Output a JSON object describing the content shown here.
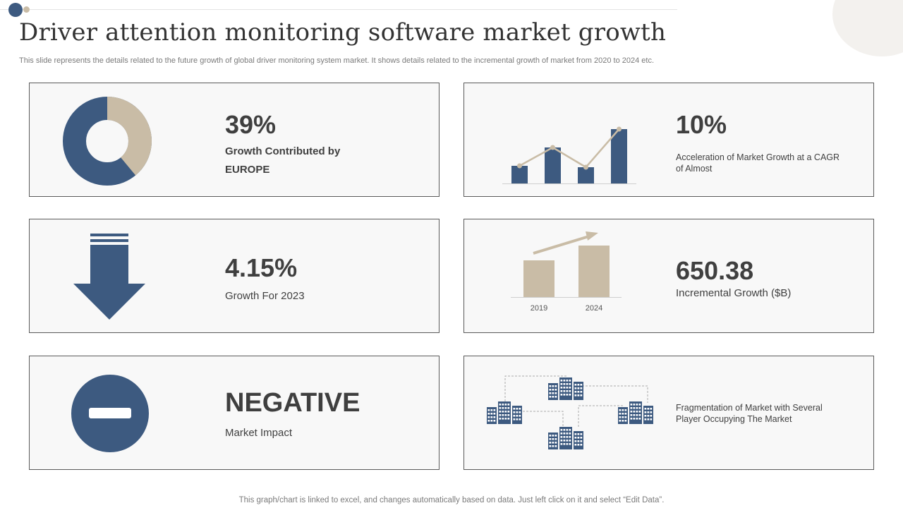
{
  "header": {
    "title": "Driver attention monitoring software market growth",
    "subtitle": "This slide represents the details related to the future growth of global driver monitoring system market. It shows details related to the incremental growth of market from 2020 to 2024 etc."
  },
  "colors": {
    "navy": "#3d5a80",
    "beige": "#c9bca6",
    "card_border": "#5a5a5a",
    "card_bg": "#f8f8f8"
  },
  "cards": {
    "europe": {
      "value": "39%",
      "label_line1": "Growth Contributed by",
      "label_line2": "EUROPE",
      "icon": "donut-chart-icon",
      "share": 0.39
    },
    "cagr": {
      "value": "10%",
      "label": "Acceleration of Market Growth at a CAGR of Almost",
      "icon": "bar-line-chart-icon"
    },
    "growth2023": {
      "value": "4.15%",
      "label": "Growth For 2023",
      "icon": "down-arrow-icon"
    },
    "incremental": {
      "value": "650.38",
      "label": "Incremental Growth ($B)",
      "icon": "bar-growth-icon",
      "years": [
        "2019",
        "2024"
      ]
    },
    "impact": {
      "value": "NEGATIVE",
      "label": "Market Impact",
      "icon": "minus-circle-icon"
    },
    "fragmentation": {
      "label": "Fragmentation of Market with Several Player Occupying The Market",
      "icon": "buildings-network-icon"
    }
  },
  "footer": {
    "note": "This graph/chart is linked to excel,  and changes automatically based on data. Just left click on it and select “Edit Data”."
  }
}
